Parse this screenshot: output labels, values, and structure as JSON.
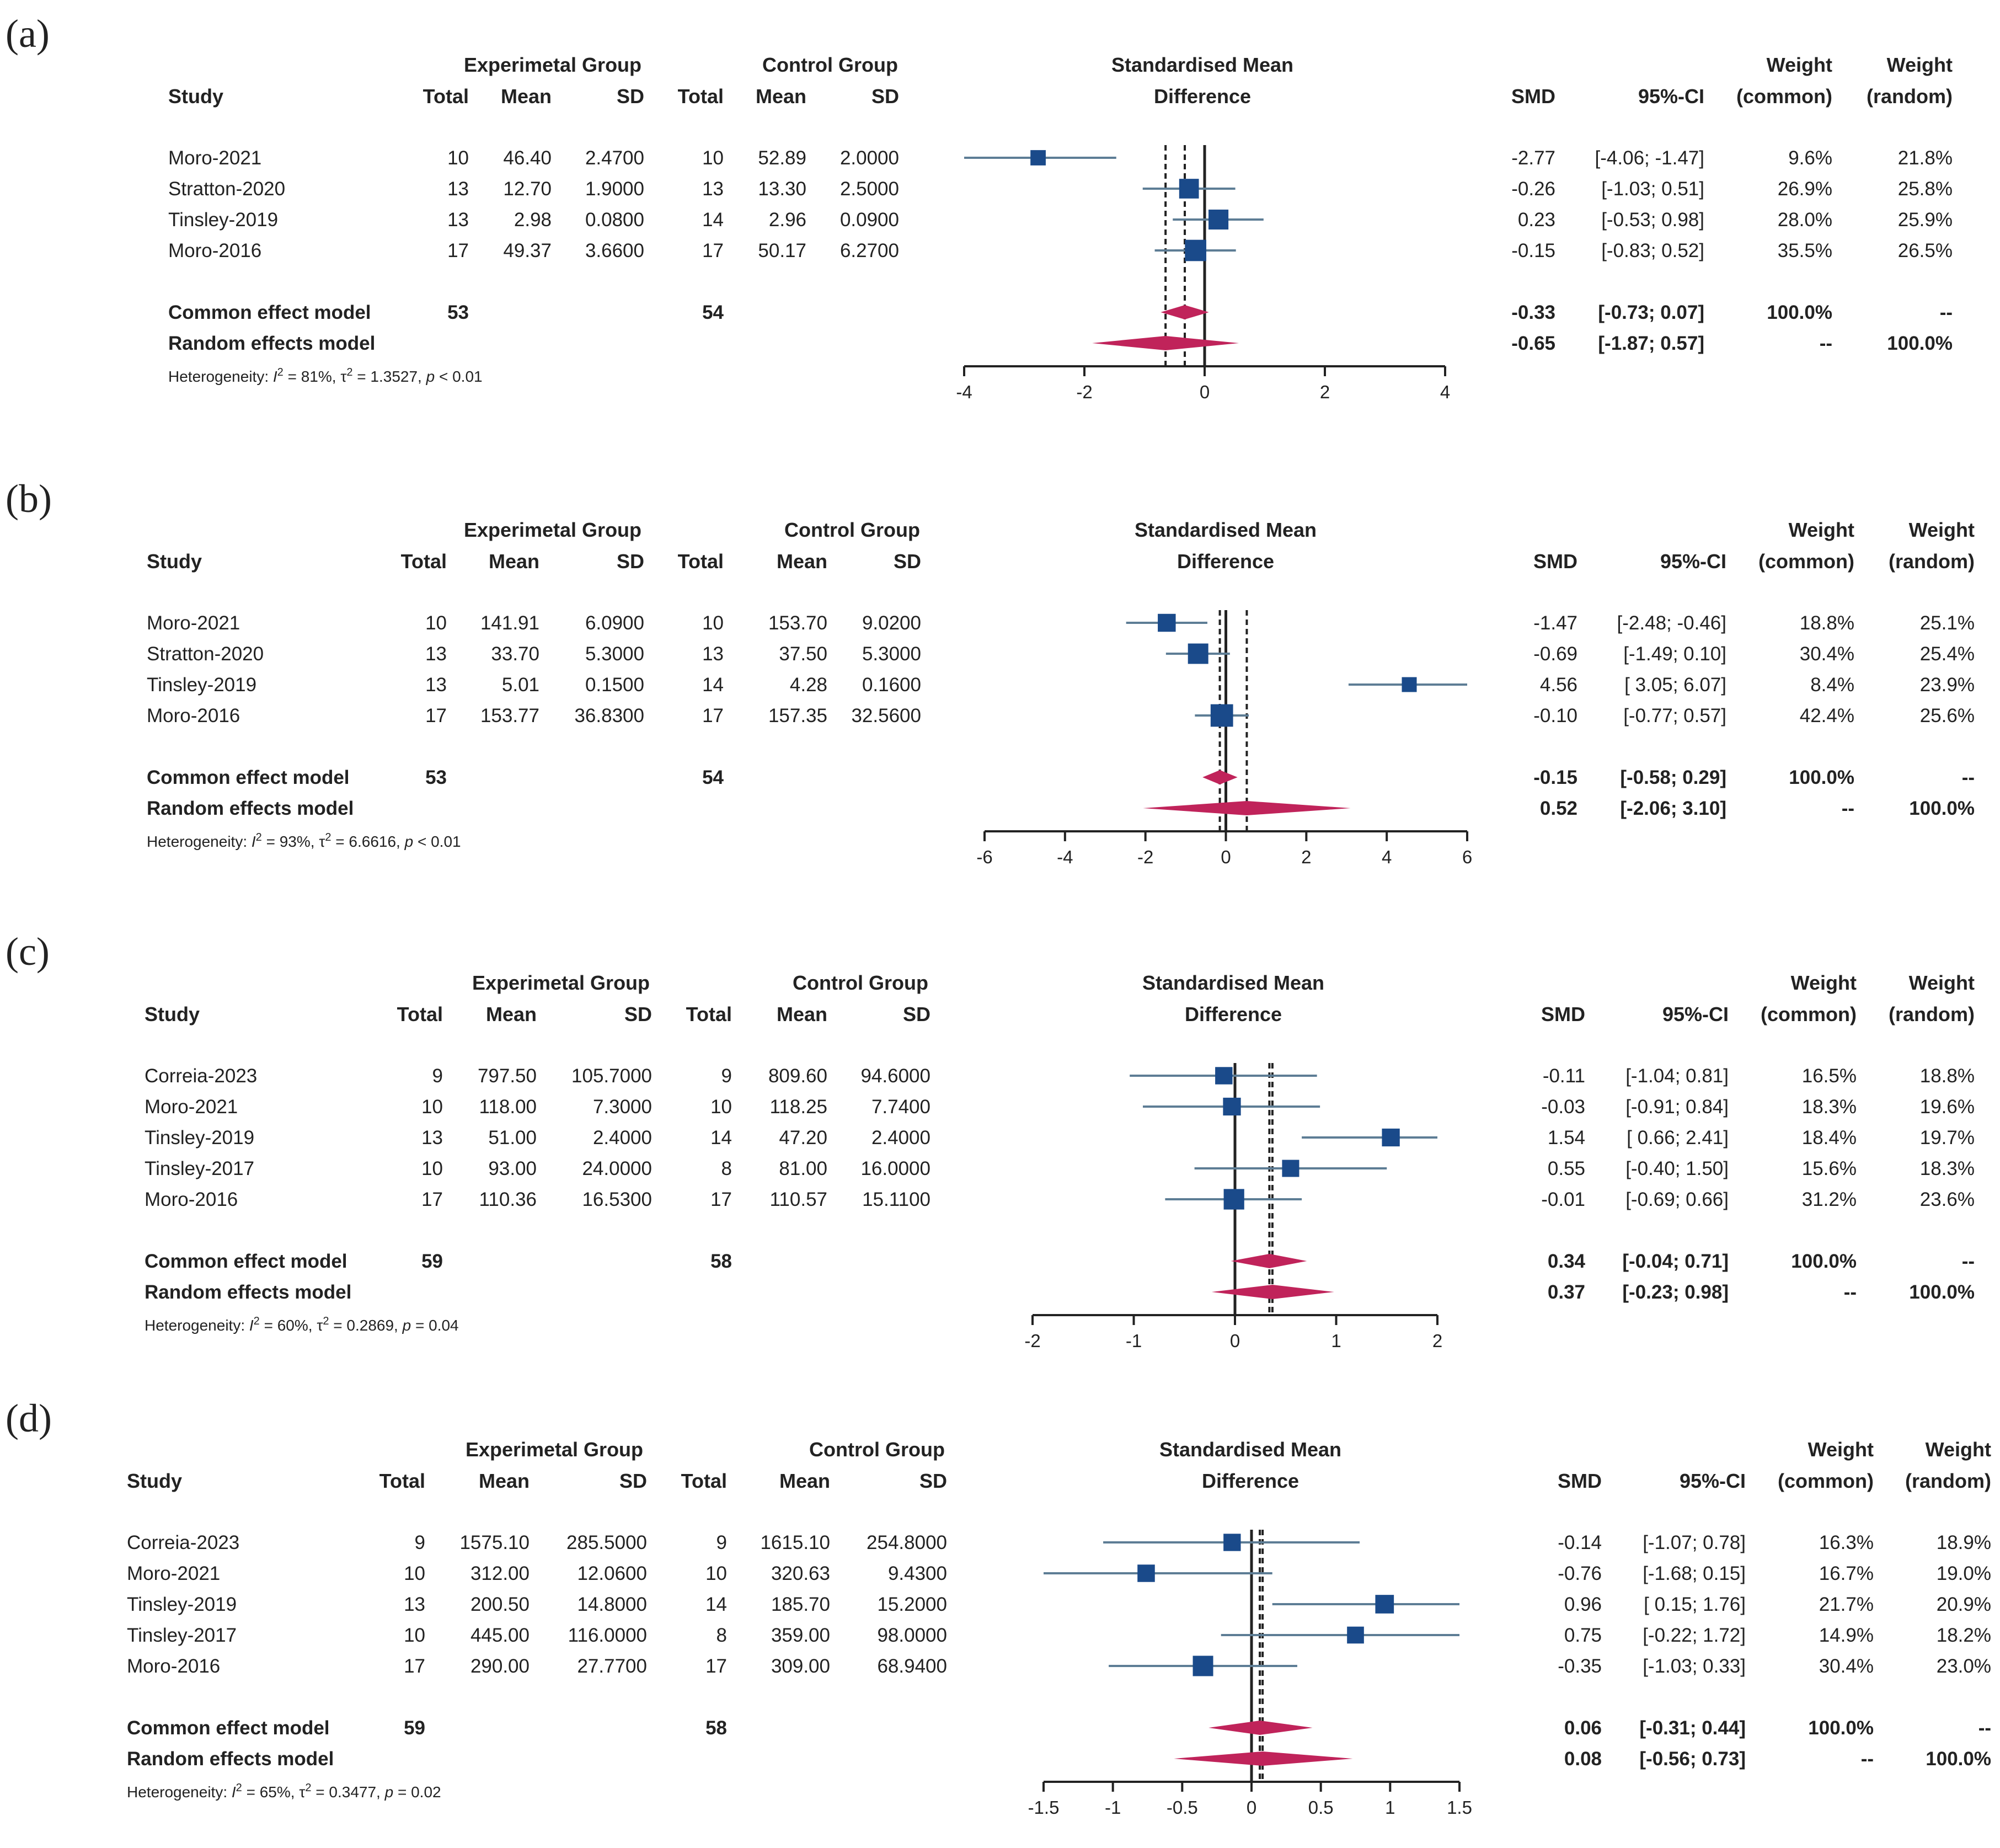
{
  "chart_data": [
    {
      "type": "forest",
      "panel_label": "(a)",
      "headers": {
        "study": "Study",
        "exp_group": "Experimetal Group",
        "ctrl_group": "Control Group",
        "total": "Total",
        "mean": "Mean",
        "sd": "SD",
        "effect_line1": "Standardised Mean",
        "effect_line2": "Difference",
        "smd": "SMD",
        "ci": "95%-CI",
        "weight": "Weight",
        "common": "(common)",
        "random": "(random)"
      },
      "xlim": [
        -4,
        4
      ],
      "ticks": [
        -4,
        -2,
        0,
        2,
        4
      ],
      "tick_labels": [
        "-4",
        "-2",
        "0",
        "2",
        "4"
      ],
      "studies": [
        {
          "name": "Moro-2021",
          "e_total": "10",
          "e_mean": "46.40",
          "e_sd": "2.4700",
          "c_total": "10",
          "c_mean": "52.89",
          "c_sd": "2.0000",
          "smd": -2.77,
          "lo": -4.06,
          "hi": -1.47,
          "smd_text": "-2.77",
          "ci_text": "[-4.06; -1.47]",
          "w_common": "9.6%",
          "w_random": "21.8%",
          "w": 9.6
        },
        {
          "name": "Stratton-2020",
          "e_total": "13",
          "e_mean": "12.70",
          "e_sd": "1.9000",
          "c_total": "13",
          "c_mean": "13.30",
          "c_sd": "2.5000",
          "smd": -0.26,
          "lo": -1.03,
          "hi": 0.51,
          "smd_text": "-0.26",
          "ci_text": "[-1.03; 0.51]",
          "w_common": "26.9%",
          "w_random": "25.8%",
          "w": 26.9
        },
        {
          "name": "Tinsley-2019",
          "e_total": "13",
          "e_mean": "2.98",
          "e_sd": "0.0800",
          "c_total": "14",
          "c_mean": "2.96",
          "c_sd": "0.0900",
          "smd": 0.23,
          "lo": -0.53,
          "hi": 0.98,
          "smd_text": "0.23",
          "ci_text": "[-0.53; 0.98]",
          "w_common": "28.0%",
          "w_random": "25.9%",
          "w": 28.0
        },
        {
          "name": "Moro-2016",
          "e_total": "17",
          "e_mean": "49.37",
          "e_sd": "3.6600",
          "c_total": "17",
          "c_mean": "50.17",
          "c_sd": "6.2700",
          "smd": -0.15,
          "lo": -0.83,
          "hi": 0.52,
          "smd_text": "-0.15",
          "ci_text": "[-0.83; 0.52]",
          "w_common": "35.5%",
          "w_random": "26.5%",
          "w": 35.5
        }
      ],
      "common": {
        "label": "Common effect model",
        "e_total": "53",
        "c_total": "54",
        "smd": -0.33,
        "lo": -0.73,
        "hi": 0.07,
        "smd_text": "-0.33",
        "ci_text": "[-0.73; 0.07]",
        "w_common": "100.0%",
        "w_random": "--"
      },
      "random": {
        "label": "Random effects model",
        "smd": -0.65,
        "lo": -1.87,
        "hi": 0.57,
        "smd_text": "-0.65",
        "ci_text": "[-1.87; 0.57]",
        "w_common": "--",
        "w_random": "100.0%"
      },
      "heterogeneity": {
        "prefix": "Heterogeneity: ",
        "i2_sym": "I",
        "i2_sup": "2",
        "i2_val": " = 81%, ",
        "tau_sym": "τ",
        "tau_sup": "2",
        "tau_val": " = 1.3527, ",
        "p_sym": "p",
        "p_val": " < 0.01"
      }
    },
    {
      "type": "forest",
      "panel_label": "(b)",
      "headers": {
        "study": "Study",
        "exp_group": "Experimetal Group",
        "ctrl_group": "Control Group",
        "total": "Total",
        "mean": "Mean",
        "sd": "SD",
        "effect_line1": "Standardised Mean",
        "effect_line2": "Difference",
        "smd": "SMD",
        "ci": "95%-CI",
        "weight": "Weight",
        "common": "(common)",
        "random": "(random)"
      },
      "xlim": [
        -6,
        6
      ],
      "ticks": [
        -6,
        -4,
        -2,
        0,
        2,
        4,
        6
      ],
      "tick_labels": [
        "-6",
        "-4",
        "-2",
        "0",
        "2",
        "4",
        "6"
      ],
      "studies": [
        {
          "name": "Moro-2021",
          "e_total": "10",
          "e_mean": "141.91",
          "e_sd": "6.0900",
          "c_total": "10",
          "c_mean": "153.70",
          "c_sd": "9.0200",
          "smd": -1.47,
          "lo": -2.48,
          "hi": -0.46,
          "smd_text": "-1.47",
          "ci_text": "[-2.48; -0.46]",
          "w_common": "18.8%",
          "w_random": "25.1%",
          "w": 18.8
        },
        {
          "name": "Stratton-2020",
          "e_total": "13",
          "e_mean": "33.70",
          "e_sd": "5.3000",
          "c_total": "13",
          "c_mean": "37.50",
          "c_sd": "5.3000",
          "smd": -0.69,
          "lo": -1.49,
          "hi": 0.1,
          "smd_text": "-0.69",
          "ci_text": "[-1.49; 0.10]",
          "w_common": "30.4%",
          "w_random": "25.4%",
          "w": 30.4
        },
        {
          "name": "Tinsley-2019",
          "e_total": "13",
          "e_mean": "5.01",
          "e_sd": "0.1500",
          "c_total": "14",
          "c_mean": "4.28",
          "c_sd": "0.1600",
          "smd": 4.56,
          "lo": 3.05,
          "hi": 6.07,
          "smd_text": "4.56",
          "ci_text": "[ 3.05; 6.07]",
          "w_common": "8.4%",
          "w_random": "23.9%",
          "w": 8.4
        },
        {
          "name": "Moro-2016",
          "e_total": "17",
          "e_mean": "153.77",
          "e_sd": "36.8300",
          "c_total": "17",
          "c_mean": "157.35",
          "c_sd": "32.5600",
          "smd": -0.1,
          "lo": -0.77,
          "hi": 0.57,
          "smd_text": "-0.10",
          "ci_text": "[-0.77; 0.57]",
          "w_common": "42.4%",
          "w_random": "25.6%",
          "w": 42.4
        }
      ],
      "common": {
        "label": "Common effect model",
        "e_total": "53",
        "c_total": "54",
        "smd": -0.15,
        "lo": -0.58,
        "hi": 0.29,
        "smd_text": "-0.15",
        "ci_text": "[-0.58; 0.29]",
        "w_common": "100.0%",
        "w_random": "--"
      },
      "random": {
        "label": "Random effects model",
        "smd": 0.52,
        "lo": -2.06,
        "hi": 3.1,
        "smd_text": "0.52",
        "ci_text": "[-2.06; 3.10]",
        "w_common": "--",
        "w_random": "100.0%"
      },
      "heterogeneity": {
        "prefix": "Heterogeneity: ",
        "i2_sym": "I",
        "i2_sup": "2",
        "i2_val": " = 93%, ",
        "tau_sym": "τ",
        "tau_sup": "2",
        "tau_val": " = 6.6616, ",
        "p_sym": "p",
        "p_val": " < 0.01"
      }
    },
    {
      "type": "forest",
      "panel_label": "(c)",
      "headers": {
        "study": "Study",
        "exp_group": "Experimetal Group",
        "ctrl_group": "Control Group",
        "total": "Total",
        "mean": "Mean",
        "sd": "SD",
        "effect_line1": "Standardised Mean",
        "effect_line2": "Difference",
        "smd": "SMD",
        "ci": "95%-CI",
        "weight": "Weight",
        "common": "(common)",
        "random": "(random)"
      },
      "xlim": [
        -2,
        2
      ],
      "ticks": [
        -2,
        -1,
        0,
        1,
        2
      ],
      "tick_labels": [
        "-2",
        "-1",
        "0",
        "1",
        "2"
      ],
      "studies": [
        {
          "name": "Correia-2023",
          "e_total": "9",
          "e_mean": "797.50",
          "e_sd": "105.7000",
          "c_total": "9",
          "c_mean": "809.60",
          "c_sd": "94.6000",
          "smd": -0.11,
          "lo": -1.04,
          "hi": 0.81,
          "smd_text": "-0.11",
          "ci_text": "[-1.04; 0.81]",
          "w_common": "16.5%",
          "w_random": "18.8%",
          "w": 16.5
        },
        {
          "name": "Moro-2021",
          "e_total": "10",
          "e_mean": "118.00",
          "e_sd": "7.3000",
          "c_total": "10",
          "c_mean": "118.25",
          "c_sd": "7.7400",
          "smd": -0.03,
          "lo": -0.91,
          "hi": 0.84,
          "smd_text": "-0.03",
          "ci_text": "[-0.91; 0.84]",
          "w_common": "18.3%",
          "w_random": "19.6%",
          "w": 18.3
        },
        {
          "name": "Tinsley-2019",
          "e_total": "13",
          "e_mean": "51.00",
          "e_sd": "2.4000",
          "c_total": "14",
          "c_mean": "47.20",
          "c_sd": "2.4000",
          "smd": 1.54,
          "lo": 0.66,
          "hi": 2.41,
          "smd_text": "1.54",
          "ci_text": "[ 0.66; 2.41]",
          "w_common": "18.4%",
          "w_random": "19.7%",
          "w": 18.4
        },
        {
          "name": "Tinsley-2017",
          "e_total": "10",
          "e_mean": "93.00",
          "e_sd": "24.0000",
          "c_total": "8",
          "c_mean": "81.00",
          "c_sd": "16.0000",
          "smd": 0.55,
          "lo": -0.4,
          "hi": 1.5,
          "smd_text": "0.55",
          "ci_text": "[-0.40; 1.50]",
          "w_common": "15.6%",
          "w_random": "18.3%",
          "w": 15.6
        },
        {
          "name": "Moro-2016",
          "e_total": "17",
          "e_mean": "110.36",
          "e_sd": "16.5300",
          "c_total": "17",
          "c_mean": "110.57",
          "c_sd": "15.1100",
          "smd": -0.01,
          "lo": -0.69,
          "hi": 0.66,
          "smd_text": "-0.01",
          "ci_text": "[-0.69; 0.66]",
          "w_common": "31.2%",
          "w_random": "23.6%",
          "w": 31.2
        }
      ],
      "common": {
        "label": "Common effect model",
        "e_total": "59",
        "c_total": "58",
        "smd": 0.34,
        "lo": -0.04,
        "hi": 0.71,
        "smd_text": "0.34",
        "ci_text": "[-0.04; 0.71]",
        "w_common": "100.0%",
        "w_random": "--"
      },
      "random": {
        "label": "Random effects model",
        "smd": 0.37,
        "lo": -0.23,
        "hi": 0.98,
        "smd_text": "0.37",
        "ci_text": "[-0.23; 0.98]",
        "w_common": "--",
        "w_random": "100.0%"
      },
      "heterogeneity": {
        "prefix": "Heterogeneity: ",
        "i2_sym": "I",
        "i2_sup": "2",
        "i2_val": " = 60%, ",
        "tau_sym": "τ",
        "tau_sup": "2",
        "tau_val": " = 0.2869, ",
        "p_sym": "p",
        "p_val": " = 0.04"
      }
    },
    {
      "type": "forest",
      "panel_label": "(d)",
      "headers": {
        "study": "Study",
        "exp_group": "Experimetal Group",
        "ctrl_group": "Control Group",
        "total": "Total",
        "mean": "Mean",
        "sd": "SD",
        "effect_line1": "Standardised Mean",
        "effect_line2": "Difference",
        "smd": "SMD",
        "ci": "95%-CI",
        "weight": "Weight",
        "common": "(common)",
        "random": "(random)"
      },
      "xlim": [
        -1.5,
        1.5
      ],
      "ticks": [
        -1.5,
        -1,
        -0.5,
        0,
        0.5,
        1,
        1.5
      ],
      "tick_labels": [
        "-1.5",
        "-1",
        "-0.5",
        "0",
        "0.5",
        "1",
        "1.5"
      ],
      "studies": [
        {
          "name": "Correia-2023",
          "e_total": "9",
          "e_mean": "1575.10",
          "e_sd": "285.5000",
          "c_total": "9",
          "c_mean": "1615.10",
          "c_sd": "254.8000",
          "smd": -0.14,
          "lo": -1.07,
          "hi": 0.78,
          "smd_text": "-0.14",
          "ci_text": "[-1.07; 0.78]",
          "w_common": "16.3%",
          "w_random": "18.9%",
          "w": 16.3
        },
        {
          "name": "Moro-2021",
          "e_total": "10",
          "e_mean": "312.00",
          "e_sd": "12.0600",
          "c_total": "10",
          "c_mean": "320.63",
          "c_sd": "9.4300",
          "smd": -0.76,
          "lo": -1.68,
          "hi": 0.15,
          "smd_text": "-0.76",
          "ci_text": "[-1.68; 0.15]",
          "w_common": "16.7%",
          "w_random": "19.0%",
          "w": 16.7
        },
        {
          "name": "Tinsley-2019",
          "e_total": "13",
          "e_mean": "200.50",
          "e_sd": "14.8000",
          "c_total": "14",
          "c_mean": "185.70",
          "c_sd": "15.2000",
          "smd": 0.96,
          "lo": 0.15,
          "hi": 1.76,
          "smd_text": "0.96",
          "ci_text": "[ 0.15; 1.76]",
          "w_common": "21.7%",
          "w_random": "20.9%",
          "w": 21.7
        },
        {
          "name": "Tinsley-2017",
          "e_total": "10",
          "e_mean": "445.00",
          "e_sd": "116.0000",
          "c_total": "8",
          "c_mean": "359.00",
          "c_sd": "98.0000",
          "smd": 0.75,
          "lo": -0.22,
          "hi": 1.72,
          "smd_text": "0.75",
          "ci_text": "[-0.22; 1.72]",
          "w_common": "14.9%",
          "w_random": "18.2%",
          "w": 14.9
        },
        {
          "name": "Moro-2016",
          "e_total": "17",
          "e_mean": "290.00",
          "e_sd": "27.7700",
          "c_total": "17",
          "c_mean": "309.00",
          "c_sd": "68.9400",
          "smd": -0.35,
          "lo": -1.03,
          "hi": 0.33,
          "smd_text": "-0.35",
          "ci_text": "[-1.03; 0.33]",
          "w_common": "30.4%",
          "w_random": "23.0%",
          "w": 30.4
        }
      ],
      "common": {
        "label": "Common effect model",
        "e_total": "59",
        "c_total": "58",
        "smd": 0.06,
        "lo": -0.31,
        "hi": 0.44,
        "smd_text": "0.06",
        "ci_text": "[-0.31; 0.44]",
        "w_common": "100.0%",
        "w_random": "--"
      },
      "random": {
        "label": "Random effects model",
        "smd": 0.08,
        "lo": -0.56,
        "hi": 0.73,
        "smd_text": "0.08",
        "ci_text": "[-0.56; 0.73]",
        "w_common": "--",
        "w_random": "100.0%"
      },
      "heterogeneity": {
        "prefix": "Heterogeneity: ",
        "i2_sym": "I",
        "i2_sup": "2",
        "i2_val": " = 65%, ",
        "tau_sym": "τ",
        "tau_sup": "2",
        "tau_val": " = 0.3477, ",
        "p_sym": "p",
        "p_val": " = 0.02"
      }
    }
  ],
  "colors": {
    "square": "#1a4a8a",
    "ci_line": "#5d7d95",
    "diamond": "#c0235a",
    "text": "#222222",
    "axis": "#222222"
  }
}
